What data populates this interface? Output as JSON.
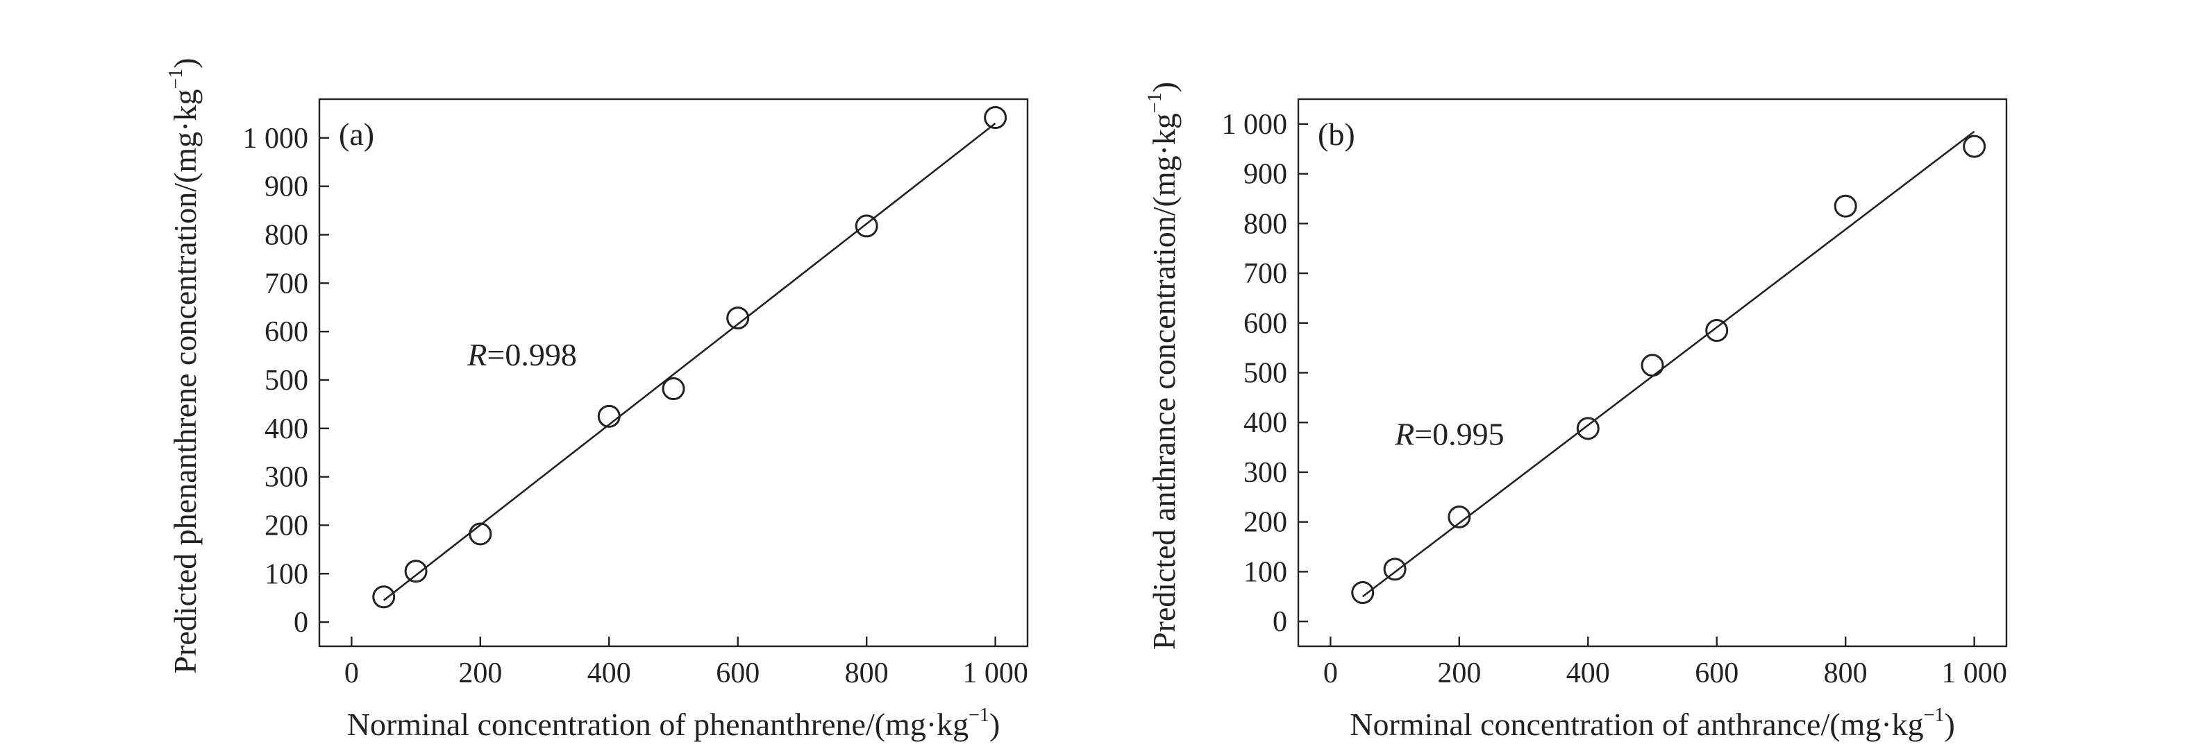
{
  "chart_data": [
    {
      "type": "scatter",
      "panel_label": "(a)",
      "xlabel": "Norminal concentration of phenanthrene/(mg·kg",
      "ylabel": "Predicted phenanthrene concentration/(mg·kg",
      "unit_exponent": "−1",
      "unit_close": ")",
      "xlim": [
        -50,
        1050
      ],
      "ylim": [
        -50,
        1080
      ],
      "xticks": [
        0,
        200,
        400,
        600,
        800,
        1000
      ],
      "xtick_labels": [
        "0",
        "200",
        "400",
        "600",
        "800",
        "1 000"
      ],
      "yticks": [
        0,
        100,
        200,
        300,
        400,
        500,
        600,
        700,
        800,
        900,
        1000
      ],
      "ytick_labels": [
        "0",
        "100",
        "200",
        "300",
        "400",
        "500",
        "600",
        "700",
        "800",
        "900",
        "1 000"
      ],
      "x": [
        50,
        100,
        200,
        400,
        500,
        600,
        800,
        1000
      ],
      "y": [
        52,
        105,
        182,
        425,
        482,
        628,
        818,
        1042
      ],
      "fit": {
        "x": [
          50,
          1000
        ],
        "y": [
          45,
          1030
        ]
      },
      "annotation": {
        "italic": "R",
        "text": "=0.998",
        "x": 180,
        "y": 530
      },
      "grid": false
    },
    {
      "type": "scatter",
      "panel_label": "(b)",
      "xlabel": "Norminal concentration of anthrance/(mg·kg",
      "ylabel": "Predicted anthrance concentration/(mg·kg",
      "unit_exponent": "−1",
      "unit_close": ")",
      "xlim": [
        -50,
        1050
      ],
      "ylim": [
        -50,
        1050
      ],
      "xticks": [
        0,
        200,
        400,
        600,
        800,
        1000
      ],
      "xtick_labels": [
        "0",
        "200",
        "400",
        "600",
        "800",
        "1 000"
      ],
      "yticks": [
        0,
        100,
        200,
        300,
        400,
        500,
        600,
        700,
        800,
        900,
        1000
      ],
      "ytick_labels": [
        "0",
        "100",
        "200",
        "300",
        "400",
        "500",
        "600",
        "700",
        "800",
        "900",
        "1 000"
      ],
      "x": [
        50,
        100,
        200,
        400,
        500,
        600,
        800,
        1000
      ],
      "y": [
        58,
        105,
        210,
        388,
        515,
        585,
        835,
        955
      ],
      "fit": {
        "x": [
          50,
          1000
        ],
        "y": [
          50,
          985
        ]
      },
      "annotation": {
        "italic": "R",
        "text": "=0.995",
        "x": 100,
        "y": 355
      },
      "grid": false
    }
  ]
}
